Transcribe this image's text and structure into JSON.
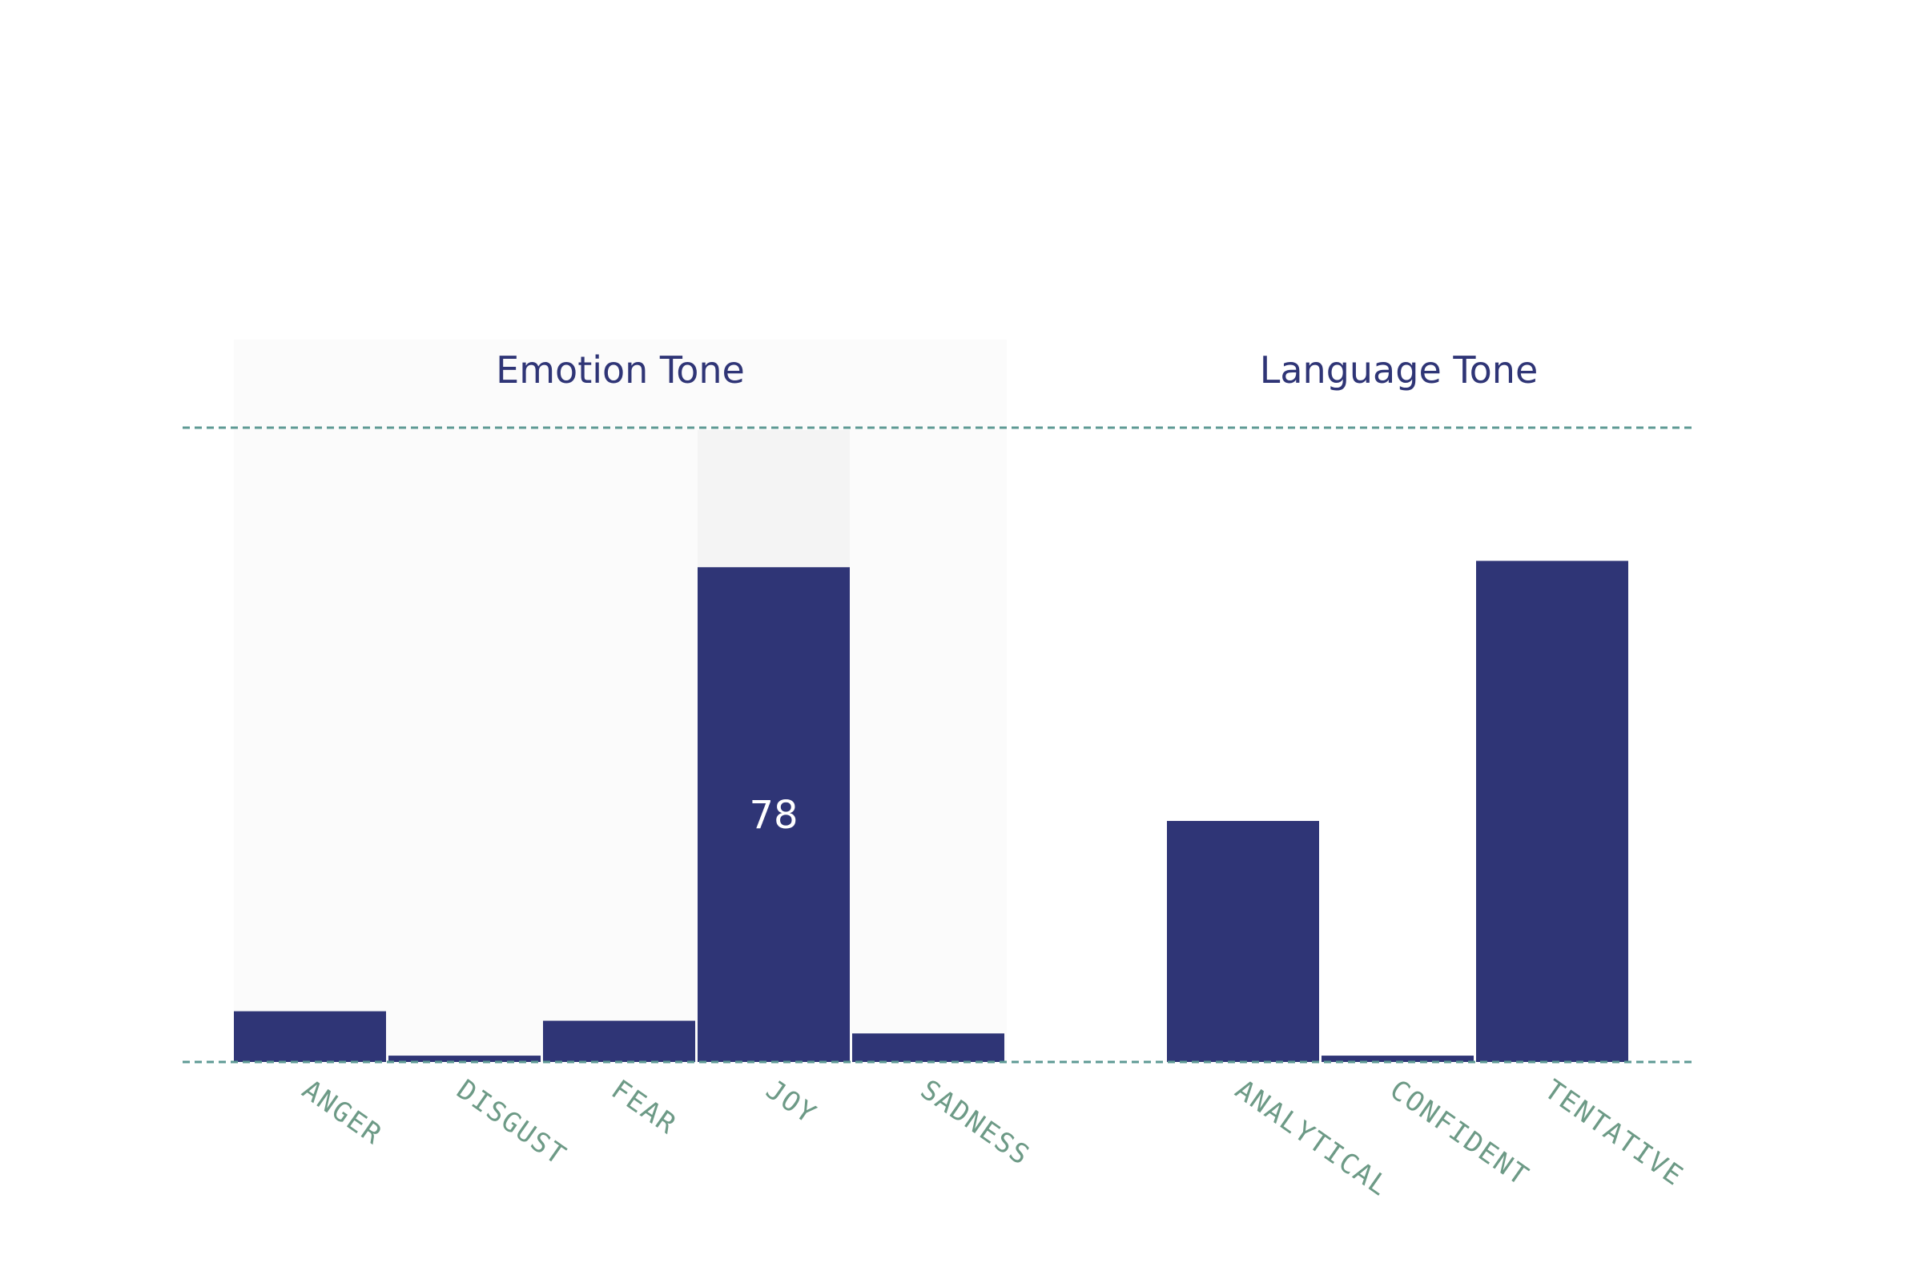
{
  "colors": {
    "bar": "#2f3576",
    "axis_line": "#5e9a94",
    "tick_label": "#6d9a86",
    "title": "#2f3576",
    "group_highlight": "#fbfbfb",
    "bar_highlight": "#f4f4f4",
    "value_label": "#ffffff"
  },
  "chart_data": [
    {
      "type": "bar",
      "title": "Emotion Tone",
      "categories": [
        "ANGER",
        "DISGUST",
        "FEAR",
        "JOY",
        "SADNESS"
      ],
      "values": [
        8,
        1,
        6.5,
        78,
        4.5
      ],
      "ylim": [
        0,
        100
      ],
      "highlighted": true,
      "highlight_category": "JOY",
      "value_label": "78",
      "grid": false
    },
    {
      "type": "bar",
      "title": "Language Tone",
      "categories": [
        "ANALYTICAL",
        "CONFIDENT",
        "TENTATIVE"
      ],
      "values": [
        38,
        1,
        79
      ],
      "ylim": [
        0,
        100
      ],
      "highlighted": false,
      "grid": false
    }
  ]
}
